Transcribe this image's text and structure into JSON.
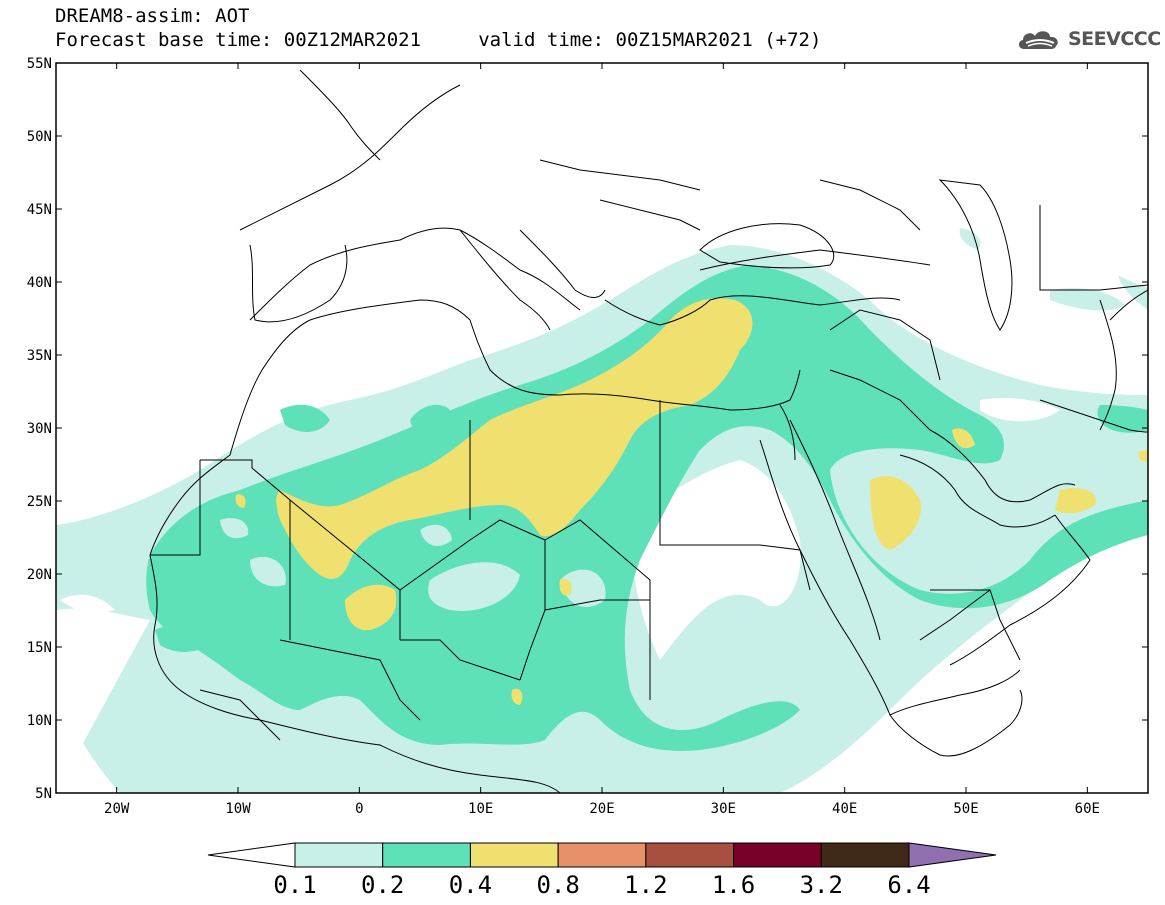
{
  "header": {
    "line1": "DREAM8-assim: AOT",
    "line2": "Forecast base time: 00Z12MAR2021     valid time: 00Z15MAR2021 (+72)",
    "logo_text": "SEEVCCC"
  },
  "map": {
    "lat_ticks": [
      "55N",
      "50N",
      "45N",
      "40N",
      "35N",
      "30N",
      "25N",
      "20N",
      "15N",
      "10N",
      "5N"
    ],
    "lon_ticks": [
      "20W",
      "10W",
      "0",
      "10E",
      "20E",
      "30E",
      "40E",
      "50E",
      "60E"
    ],
    "lon_range": [
      -25,
      65
    ],
    "lat_range": [
      5,
      55
    ]
  },
  "colorbar": {
    "labels": [
      "0.1",
      "0.2",
      "0.4",
      "0.8",
      "1.2",
      "1.6",
      "3.2",
      "6.4"
    ],
    "colors": [
      "#c8f0e8",
      "#5ee0b8",
      "#f0e070",
      "#e89068",
      "#a85040",
      "#780028",
      "#402818"
    ],
    "under_color": "#ffffff",
    "over_color": "#9070b0"
  },
  "colors": {
    "aot_0_1": "#c8f0e8",
    "aot_0_2": "#5ee0b8",
    "aot_0_4": "#f0e070"
  }
}
